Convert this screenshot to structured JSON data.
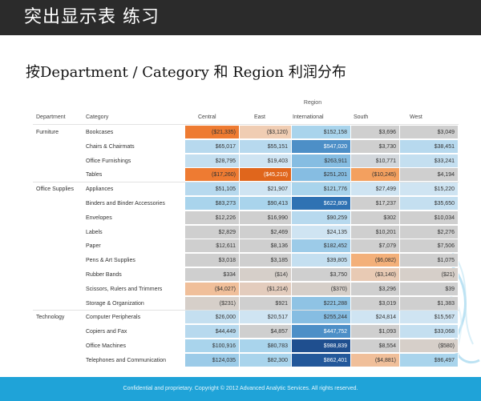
{
  "slide": {
    "title": "突出显示表 练习",
    "subtitle": "按Department / Category 和 Region 利润分布",
    "footer": "Confidential and proprietary. Copyright © 2012 Advanced Analytic Services. All rights reserved."
  },
  "table": {
    "region_caption": "Region",
    "headers": {
      "department": "Department",
      "category": "Category",
      "regions": [
        "Central",
        "East",
        "International",
        "South",
        "West"
      ]
    },
    "rows": [
      {
        "dept": "Furniture",
        "category": "Bookcases",
        "values": [
          "($21,335)",
          "($3,120)",
          "$152,158",
          "$3,696",
          "$3,049"
        ],
        "colors": [
          "#ee7b32",
          "#f0cdb3",
          "#a9d4ec",
          "#cfcfcf",
          "#cfcfcf"
        ]
      },
      {
        "dept": "",
        "category": "Chairs & Chairmats",
        "values": [
          "$65,017",
          "$55,151",
          "$547,020",
          "$3,730",
          "$38,451"
        ],
        "colors": [
          "#b7d9ee",
          "#b7d9ee",
          "#4d8fc7",
          "#cfcfcf",
          "#b7d9ee"
        ]
      },
      {
        "dept": "",
        "category": "Office Furnishings",
        "values": [
          "$28,795",
          "$19,403",
          "$263,911",
          "$10,771",
          "$33,241"
        ],
        "colors": [
          "#c4dff0",
          "#cfe4f2",
          "#86bde2",
          "#d2d7dc",
          "#c4dff0"
        ]
      },
      {
        "dept": "",
        "category": "Tables",
        "values": [
          "($17,260)",
          "($45,210)",
          "$251,201",
          "($10,245)",
          "$4,194"
        ],
        "colors": [
          "#ee7b32",
          "#e0661c",
          "#86bde2",
          "#f3a05f",
          "#cfcfcf"
        ]
      },
      {
        "dept": "Office Supplies",
        "category": "Appliances",
        "values": [
          "$51,105",
          "$21,907",
          "$121,776",
          "$27,499",
          "$15,220"
        ],
        "colors": [
          "#b7d9ee",
          "#cfe4f2",
          "#a9d4ec",
          "#cfe4f2",
          "#cfe4f2"
        ]
      },
      {
        "dept": "",
        "category": "Binders and Binder Accessories",
        "values": [
          "$83,273",
          "$90,413",
          "$622,809",
          "$17,237",
          "$35,650"
        ],
        "colors": [
          "#a9d4ec",
          "#a9d4ec",
          "#2f72b3",
          "#cfcfcf",
          "#c4dff0"
        ]
      },
      {
        "dept": "",
        "category": "Envelopes",
        "values": [
          "$12,226",
          "$16,990",
          "$90,259",
          "$302",
          "$10,034"
        ],
        "colors": [
          "#cfcfcf",
          "#cfcfcf",
          "#b7d9ee",
          "#cfcfcf",
          "#cfcfcf"
        ]
      },
      {
        "dept": "",
        "category": "Labels",
        "values": [
          "$2,829",
          "$2,469",
          "$24,135",
          "$10,201",
          "$2,276"
        ],
        "colors": [
          "#cfcfcf",
          "#cfcfcf",
          "#cfe4f2",
          "#cfcfcf",
          "#cfcfcf"
        ]
      },
      {
        "dept": "",
        "category": "Paper",
        "values": [
          "$12,611",
          "$8,136",
          "$182,452",
          "$7,079",
          "$7,506"
        ],
        "colors": [
          "#cfcfcf",
          "#cfcfcf",
          "#9ccbe8",
          "#cfcfcf",
          "#cfcfcf"
        ]
      },
      {
        "dept": "",
        "category": "Pens & Art Supplies",
        "values": [
          "$3,018",
          "$3,185",
          "$39,805",
          "($6,082)",
          "$1,075"
        ],
        "colors": [
          "#cfcfcf",
          "#cfcfcf",
          "#c4dff0",
          "#f3b07a",
          "#cfcfcf"
        ]
      },
      {
        "dept": "",
        "category": "Rubber Bands",
        "values": [
          "$334",
          "($14)",
          "$3,750",
          "($3,140)",
          "($21)"
        ],
        "colors": [
          "#cfcfcf",
          "#d6cfc9",
          "#cfcfcf",
          "#e8cab4",
          "#d6cfc9"
        ]
      },
      {
        "dept": "",
        "category": "Scissors, Rulers and Trimmers",
        "values": [
          "($4,027)",
          "($1,214)",
          "($370)",
          "$3,296",
          "$39"
        ],
        "colors": [
          "#f0bf9a",
          "#e3ccbd",
          "#d6cfc9",
          "#cfcfcf",
          "#cfcfcf"
        ]
      },
      {
        "dept": "",
        "category": "Storage & Organization",
        "values": [
          "($231)",
          "$921",
          "$221,288",
          "$3,019",
          "$1,383"
        ],
        "colors": [
          "#d6cfc9",
          "#cfcfcf",
          "#8fc3e4",
          "#cfcfcf",
          "#cfcfcf"
        ]
      },
      {
        "dept": "Technology",
        "category": "Computer Peripherals",
        "values": [
          "$26,000",
          "$20,517",
          "$255,244",
          "$24,814",
          "$15,567"
        ],
        "colors": [
          "#c4dff0",
          "#cfe4f2",
          "#86bde2",
          "#cfe4f2",
          "#cfe4f2"
        ]
      },
      {
        "dept": "",
        "category": "Copiers and Fax",
        "values": [
          "$44,449",
          "$4,857",
          "$447,752",
          "$1,093",
          "$33,068"
        ],
        "colors": [
          "#b7d9ee",
          "#cfcfcf",
          "#4d8fc7",
          "#cfcfcf",
          "#c4dff0"
        ]
      },
      {
        "dept": "",
        "category": "Office Machines",
        "values": [
          "$100,916",
          "$80,783",
          "$988,839",
          "$8,554",
          "($580)"
        ],
        "colors": [
          "#a9d4ec",
          "#a9d4ec",
          "#1f4f8f",
          "#cfcfcf",
          "#d6cfc9"
        ]
      },
      {
        "dept": "",
        "category": "Telephones and Communication",
        "values": [
          "$124,035",
          "$82,300",
          "$862,401",
          "($4,881)",
          "$96,497"
        ],
        "colors": [
          "#9ccbe8",
          "#a9d4ec",
          "#23589a",
          "#f0bf9a",
          "#a9d4ec"
        ]
      }
    ]
  },
  "colors": {
    "title_bar": "#2b2b2b",
    "footer_bar": "#1fa3d8",
    "negative_strong": "#e0661c",
    "positive_strong": "#1f4f8f",
    "neutral": "#cfcfcf"
  }
}
